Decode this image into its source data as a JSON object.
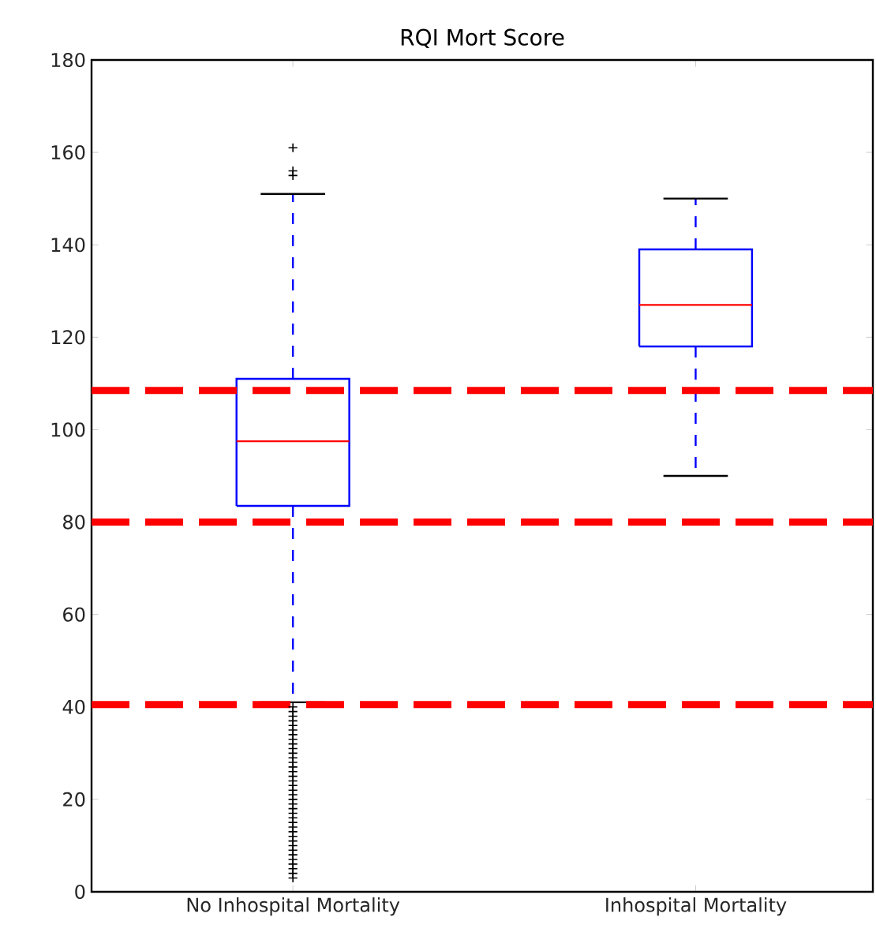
{
  "chart_data": {
    "type": "box",
    "title": "RQI Mort Score",
    "categories": [
      "No Inhospital Mortality",
      "Inhospital Mortality"
    ],
    "color": "#0000ff",
    "boxes": [
      {
        "low": 41,
        "q1": 83.5,
        "median": 97.5,
        "q3": 111,
        "high": 151,
        "outliers": [
          3,
          4,
          5,
          6,
          7,
          8,
          9,
          10,
          11,
          12,
          13,
          14,
          15,
          16,
          17,
          18,
          19,
          20,
          21,
          22,
          23,
          24,
          25,
          26,
          27,
          28,
          29,
          30,
          31,
          32,
          33,
          34,
          35,
          36,
          37,
          38,
          39,
          40,
          155,
          156,
          161
        ]
      },
      {
        "low": 90,
        "q1": 118,
        "median": 127,
        "q3": 139,
        "high": 150
      }
    ],
    "ylim": [
      0,
      180
    ],
    "yticks": [
      0,
      20,
      40,
      60,
      80,
      100,
      120,
      140,
      160,
      180
    ],
    "ref_lines": [
      {
        "axis": "y",
        "value": 108.5,
        "color": "#ff0000",
        "line_style": "dashed"
      },
      {
        "axis": "y",
        "value": 80,
        "color": "#ff0000",
        "line_style": "dashed"
      },
      {
        "axis": "y",
        "value": 40.5,
        "color": "#ff0000",
        "line_style": "dashed"
      }
    ]
  }
}
